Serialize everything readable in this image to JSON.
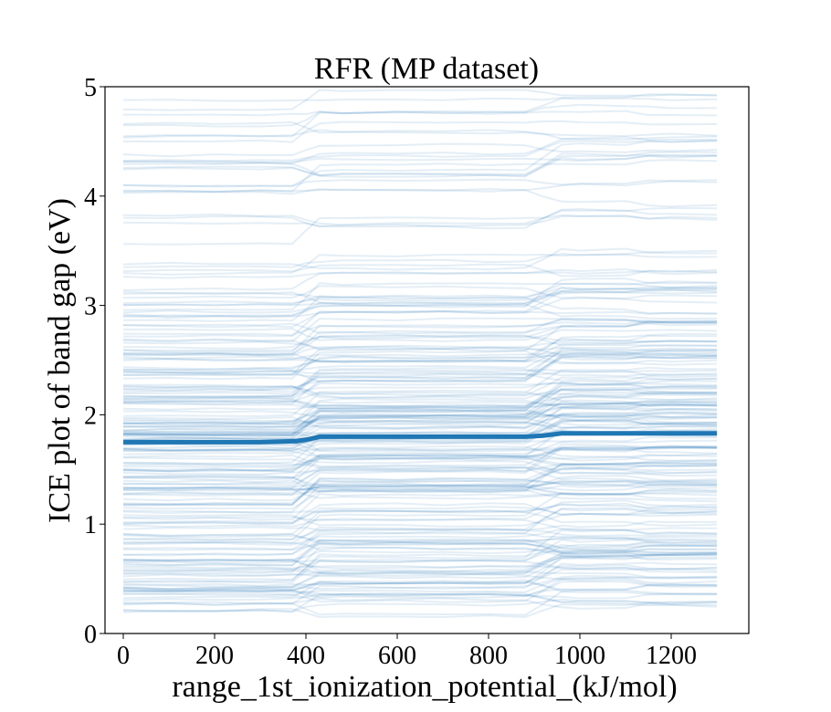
{
  "chart_data": {
    "type": "line",
    "title": "RFR (MP dataset)",
    "xlabel": "range_1st_ionization_potential_(kJ/mol)",
    "ylabel": "ICE plot of band gap (eV)",
    "xlim": [
      -40,
      1370
    ],
    "ylim": [
      0,
      5
    ],
    "xticks": [
      0,
      200,
      400,
      600,
      800,
      1000,
      1200
    ],
    "yticks": [
      0,
      1,
      2,
      3,
      4,
      5
    ],
    "grid": false,
    "series_color": "#1f77b4",
    "ice_lines": {
      "description_count": 220,
      "x_range": [
        0,
        1300
      ],
      "y_range_at_x0": [
        0.2,
        4.9
      ]
    },
    "series": [
      {
        "x": [
          0,
          100,
          200,
          300,
          380,
          410,
          430,
          500,
          600,
          700,
          800,
          880,
          920,
          960,
          1000,
          1100,
          1200,
          1300
        ],
        "y": [
          1.75,
          1.75,
          1.75,
          1.75,
          1.76,
          1.78,
          1.8,
          1.8,
          1.8,
          1.8,
          1.8,
          1.8,
          1.81,
          1.83,
          1.83,
          1.83,
          1.83,
          1.83
        ]
      }
    ]
  }
}
